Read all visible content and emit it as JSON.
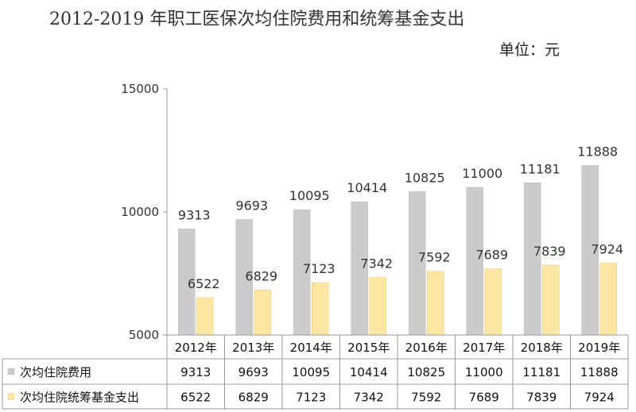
{
  "chart_data": {
    "type": "bar",
    "title": "2012-2019 年职工医保次均住院费用和统筹基金支出",
    "unit": "单位：元",
    "categories": [
      "2012年",
      "2013年",
      "2014年",
      "2015年",
      "2016年",
      "2017年",
      "2018年",
      "2019年"
    ],
    "series": [
      {
        "name": "次均住院费用",
        "values": [
          9313,
          9693,
          10095,
          10414,
          10825,
          11000,
          11181,
          11888
        ],
        "color": "#cbcbcb"
      },
      {
        "name": "次均住院统筹基金支出",
        "values": [
          6522,
          6829,
          7123,
          7342,
          7592,
          7689,
          7839,
          7924
        ],
        "color": "#fce6a4"
      }
    ],
    "ylim": [
      5000,
      15000
    ],
    "yticks": [
      5000,
      10000,
      15000
    ],
    "legend": "data-table",
    "grid": false
  }
}
